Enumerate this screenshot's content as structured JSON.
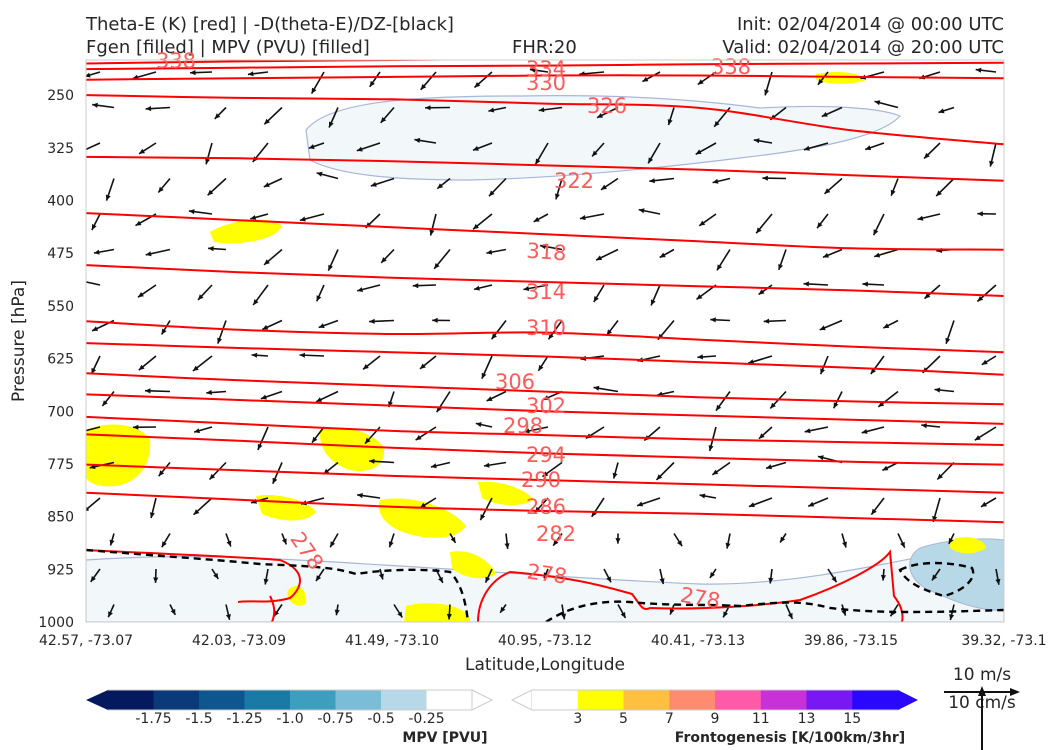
{
  "header": {
    "title_line1": "Theta-E (K) [red] | -D(theta-E)/DZ-[black]",
    "title_line2": "Fgen [filled] | MPV (PVU) [filled]",
    "fhr": "FHR:20",
    "init": "Init: 02/04/2014 @ 00:00 UTC",
    "valid": "Valid: 02/04/2014 @ 20:00 UTC"
  },
  "colors": {
    "theta_e": "#ff0000",
    "label": "#ff5a5a",
    "stability": "#000000",
    "mpv_outline": "#a9b6d6"
  },
  "chart_data": {
    "type": "contour",
    "xlabel": "Latitude,Longitude",
    "ylabel": "Pressure [hPa]",
    "x_ticks": [
      "42.57, -73.07",
      "42.03, -73.09",
      "41.49, -73.10",
      "40.95, -73.12",
      "40.41, -73.13",
      "39.86, -73.15",
      "39.32, -73.1"
    ],
    "y_ticks": [
      250,
      325,
      400,
      475,
      550,
      625,
      700,
      775,
      850,
      925,
      1000
    ],
    "ylim": [
      1000,
      200
    ],
    "theta_e_labels": [
      338,
      334,
      330,
      326,
      322,
      318,
      314,
      310,
      306,
      302,
      298,
      294,
      290,
      286,
      282,
      278,
      278,
      278,
      338
    ],
    "theta_e_contours": [
      {
        "value": 338,
        "p": [
          205,
          202,
          200,
          198,
          196,
          194,
          192
        ]
      },
      {
        "value": 334,
        "p": [
          213,
          211,
          209,
          208,
          206,
          205,
          204
        ]
      },
      {
        "value": 330,
        "p": [
          228,
          226,
          224,
          222,
          222,
          224,
          226
        ]
      },
      {
        "value": 326,
        "p": [
          250,
          254,
          256,
          262,
          268,
          300,
          320
        ]
      },
      {
        "value": 322,
        "p": [
          338,
          340,
          344,
          350,
          356,
          364,
          372
        ]
      },
      {
        "value": 318,
        "p": [
          418,
          428,
          438,
          448,
          458,
          468,
          470
        ]
      },
      {
        "value": 314,
        "p": [
          492,
          502,
          510,
          516,
          522,
          528,
          536
        ]
      },
      {
        "value": 310,
        "p": [
          572,
          584,
          590,
          588,
          598,
          608,
          616
        ]
      },
      {
        "value": 306,
        "p": [
          603,
          610,
          616,
          622,
          630,
          638,
          648
        ]
      },
      {
        "value": 302,
        "p": [
          646,
          656,
          664,
          672,
          680,
          686,
          690
        ]
      },
      {
        "value": 298,
        "p": [
          676,
          684,
          692,
          700,
          706,
          712,
          718
        ]
      },
      {
        "value": 294,
        "p": [
          708,
          718,
          728,
          734,
          740,
          744,
          748
        ]
      },
      {
        "value": 290,
        "p": [
          733,
          742,
          752,
          760,
          766,
          772,
          776
        ]
      },
      {
        "value": 286,
        "p": [
          776,
          784,
          792,
          798,
          804,
          810,
          816
        ]
      },
      {
        "value": 282,
        "p": [
          816,
          826,
          836,
          842,
          846,
          852,
          858
        ]
      }
    ],
    "stability_p": [
      890,
      900,
      920,
      940,
      970,
      960,
      950
    ],
    "mpv_colorbar": {
      "label": "MPV [PVU]",
      "ticks": [
        "-1.75",
        "-1.5",
        "-1.25",
        "-1.0",
        "-0.75",
        "-0.5",
        "-0.25"
      ],
      "colors": [
        "#051a5e",
        "#0a3a7a",
        "#0e5690",
        "#1a7aa6",
        "#3d9ec0",
        "#7bbcd6",
        "#b7d8e6",
        "#ffffff"
      ]
    },
    "fgen_colorbar": {
      "label": "Frontogenesis [K/100km/3hr]",
      "ticks": [
        "3",
        "5",
        "7",
        "9",
        "11",
        "13",
        "15"
      ],
      "colors": [
        "#ffffff",
        "#ffff00",
        "#ffc040",
        "#ff8c6e",
        "#ff5aa8",
        "#c830d8",
        "#7a18f4",
        "#2a08ff"
      ]
    },
    "vector_key": {
      "line1": "10 m/s",
      "line2": "10 cm/s"
    }
  }
}
